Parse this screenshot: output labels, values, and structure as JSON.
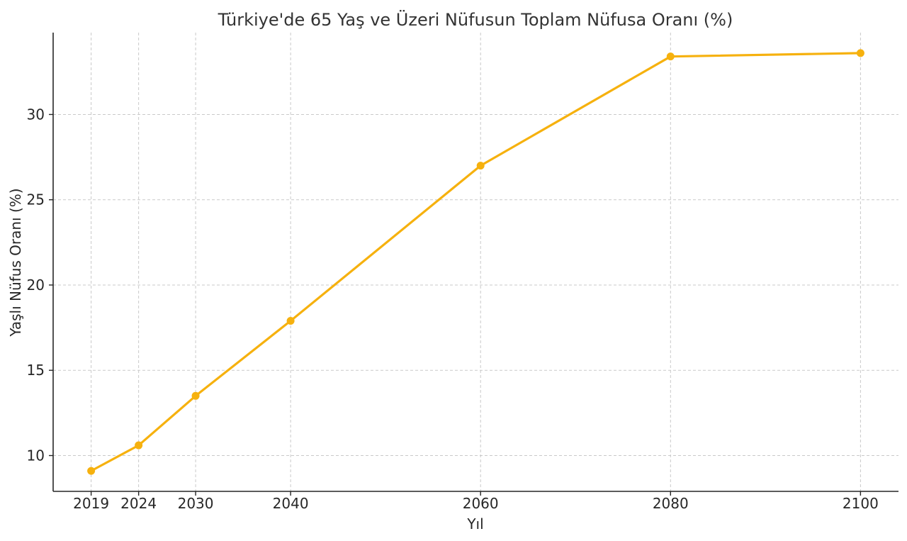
{
  "chart_data": {
    "type": "line",
    "title": "Türkiye'de 65 Yaş ve Üzeri Nüfusun Toplam Nüfusa Oranı (%)",
    "xlabel": "Yıl",
    "ylabel": "Yaşlı Nüfus Oranı (%)",
    "x": [
      2019,
      2024,
      2030,
      2040,
      2060,
      2080,
      2100
    ],
    "x_tick_labels": [
      "2019",
      "2024",
      "2030",
      "2040",
      "2060",
      "2080",
      "2100"
    ],
    "values": [
      9.1,
      10.6,
      13.5,
      17.9,
      27.0,
      33.4,
      33.6
    ],
    "y_ticks": [
      10,
      15,
      20,
      25,
      30
    ],
    "y_tick_labels": [
      "10",
      "15",
      "20",
      "25",
      "30"
    ],
    "xlim": [
      2015,
      2104
    ],
    "ylim": [
      7.9,
      34.8
    ],
    "grid": true,
    "line_color": "#F6B10E",
    "marker": "circle"
  }
}
